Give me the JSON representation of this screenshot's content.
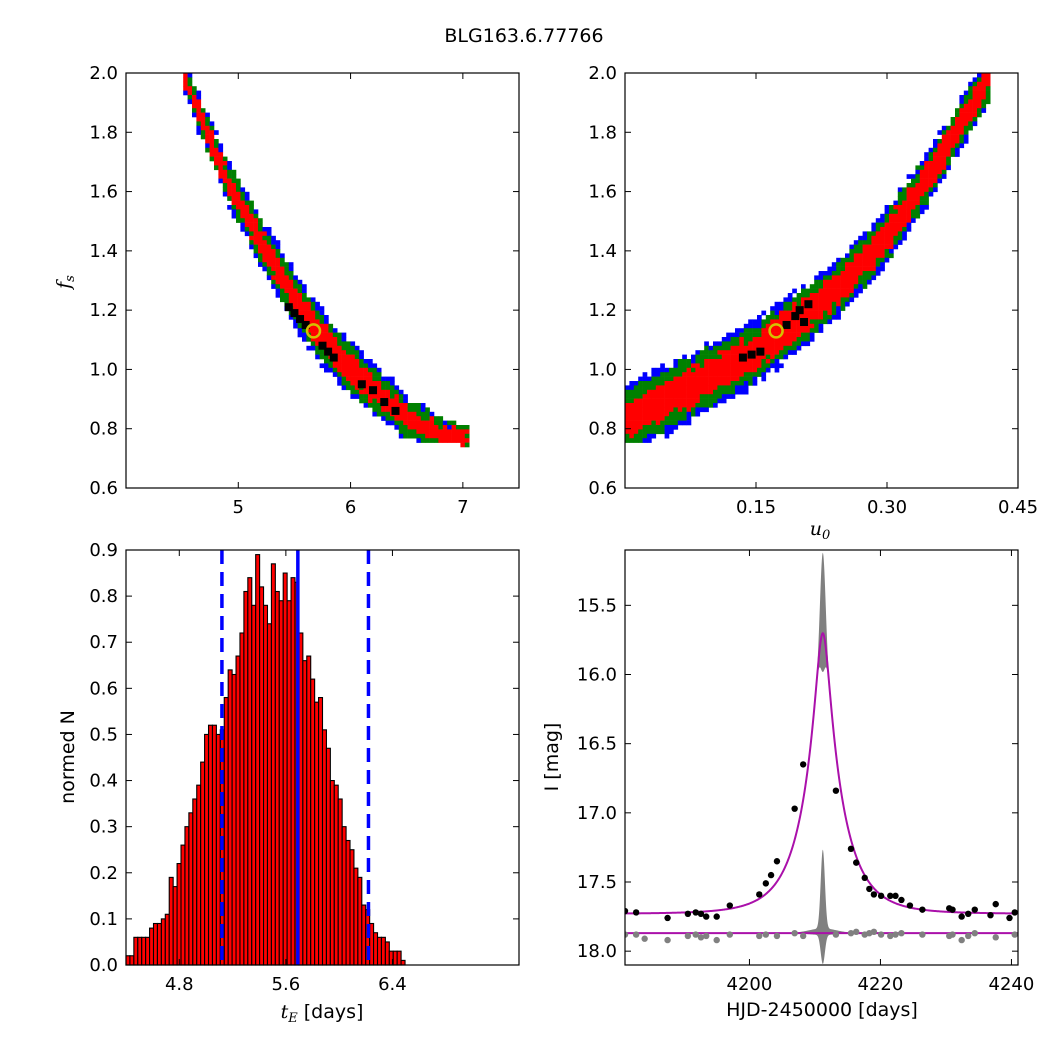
{
  "figure_title": "BLG163.6.77766",
  "chart_data": [
    {
      "type": "heatmap",
      "panel": "tE-fs",
      "xlim": [
        4.0,
        7.5
      ],
      "ylim": [
        0.6,
        2.0
      ],
      "xticks": [
        5,
        6,
        7
      ],
      "xtick_labels": [
        "5",
        "6",
        "7"
      ],
      "yticks": [
        0.6,
        0.8,
        1.0,
        1.2,
        1.4,
        1.6,
        1.8,
        2.0
      ],
      "ytick_labels": [
        "0.6",
        "0.8",
        "1.0",
        "1.2",
        "1.4",
        "1.6",
        "1.8",
        "2.0"
      ],
      "xlabel": "",
      "ylabel": "f_s",
      "ylabel_main": "f",
      "ylabel_sub": "s",
      "levels": [
        {
          "name": "outer",
          "color": "#0000ff"
        },
        {
          "name": "middle",
          "color": "#008000"
        },
        {
          "name": "inner",
          "color": "#ff0000"
        },
        {
          "name": "best",
          "color": "#000000"
        }
      ],
      "ridge": [
        [
          4.5,
          2.0
        ],
        [
          4.7,
          1.82
        ],
        [
          4.9,
          1.64
        ],
        [
          5.1,
          1.5
        ],
        [
          5.3,
          1.37
        ],
        [
          5.5,
          1.24
        ],
        [
          5.7,
          1.13
        ],
        [
          5.9,
          1.04
        ],
        [
          6.1,
          0.97
        ],
        [
          6.3,
          0.9
        ],
        [
          6.5,
          0.84
        ],
        [
          6.7,
          0.8
        ],
        [
          6.9,
          0.77
        ],
        [
          7.05,
          0.76
        ]
      ],
      "best_fit": {
        "x": 5.67,
        "y": 1.13,
        "marker_color": "#d4c000"
      },
      "best_cells": [
        [
          5.45,
          1.21
        ],
        [
          5.5,
          1.19
        ],
        [
          5.55,
          1.17
        ],
        [
          5.6,
          1.15
        ],
        [
          5.75,
          1.08
        ],
        [
          5.8,
          1.06
        ],
        [
          5.85,
          1.04
        ],
        [
          6.1,
          0.95
        ],
        [
          6.2,
          0.93
        ],
        [
          6.3,
          0.89
        ],
        [
          6.4,
          0.86
        ]
      ]
    },
    {
      "type": "heatmap",
      "panel": "u0-fs",
      "xlim": [
        0.0,
        0.45
      ],
      "ylim": [
        0.6,
        2.0
      ],
      "xticks": [
        0.15,
        0.3,
        0.45
      ],
      "xtick_labels": [
        "0.15",
        "0.30",
        "0.45"
      ],
      "yticks": [
        0.6,
        0.8,
        1.0,
        1.2,
        1.4,
        1.6,
        1.8,
        2.0
      ],
      "ytick_labels": [
        "0.6",
        "0.8",
        "1.0",
        "1.2",
        "1.4",
        "1.6",
        "1.8",
        "2.0"
      ],
      "xlabel": "u_0",
      "xlabel_main": "u",
      "xlabel_sub": "0",
      "ylabel": "",
      "ridge": [
        [
          0.0,
          0.83
        ],
        [
          0.05,
          0.9
        ],
        [
          0.1,
          0.98
        ],
        [
          0.15,
          1.06
        ],
        [
          0.2,
          1.17
        ],
        [
          0.25,
          1.29
        ],
        [
          0.3,
          1.45
        ],
        [
          0.35,
          1.66
        ],
        [
          0.4,
          1.9
        ],
        [
          0.42,
          2.0
        ]
      ],
      "best_fit": {
        "x": 0.173,
        "y": 1.13,
        "marker_color": "#d4c000"
      },
      "best_cells": [
        [
          0.135,
          1.04
        ],
        [
          0.145,
          1.05
        ],
        [
          0.155,
          1.06
        ],
        [
          0.185,
          1.15
        ],
        [
          0.195,
          1.18
        ],
        [
          0.2,
          1.2
        ],
        [
          0.21,
          1.22
        ],
        [
          0.205,
          1.16
        ]
      ]
    },
    {
      "type": "bar",
      "panel": "tE-histogram",
      "xlim": [
        4.4,
        7.35
      ],
      "ylim": [
        0.0,
        0.9
      ],
      "xticks": [
        4.8,
        5.6,
        6.4
      ],
      "xtick_labels": [
        "4.8",
        "5.6",
        "6.4"
      ],
      "yticks": [
        0.0,
        0.1,
        0.2,
        0.3,
        0.4,
        0.5,
        0.6,
        0.7,
        0.8,
        0.9
      ],
      "ytick_labels": [
        "0.0",
        "0.1",
        "0.2",
        "0.3",
        "0.4",
        "0.5",
        "0.6",
        "0.7",
        "0.8",
        "0.9"
      ],
      "xlabel_math": "t",
      "xlabel_sub": "E",
      "xlabel_rest": " [days]",
      "ylabel": "normed N",
      "bin_start": 4.4,
      "bin_width": 0.0295,
      "bar_color": "#ff0000",
      "values": [
        0.02,
        0.02,
        0.06,
        0.06,
        0.06,
        0.06,
        0.08,
        0.09,
        0.09,
        0.1,
        0.11,
        0.19,
        0.17,
        0.22,
        0.26,
        0.3,
        0.33,
        0.36,
        0.39,
        0.44,
        0.5,
        0.52,
        0.52,
        0.5,
        0.51,
        0.58,
        0.64,
        0.63,
        0.67,
        0.72,
        0.81,
        0.84,
        0.78,
        0.89,
        0.82,
        0.78,
        0.74,
        0.87,
        0.81,
        0.79,
        0.85,
        0.79,
        0.84,
        0.83,
        0.72,
        0.66,
        0.67,
        0.62,
        0.57,
        0.58,
        0.51,
        0.47,
        0.4,
        0.39,
        0.36,
        0.3,
        0.27,
        0.25,
        0.21,
        0.19,
        0.13,
        0.12,
        0.09,
        0.07,
        0.06,
        0.06,
        0.05,
        0.03,
        0.03,
        0.03,
        0.01
      ],
      "median": 5.69,
      "median_color": "#0000ff",
      "bounds": [
        5.12,
        6.22
      ]
    },
    {
      "type": "scatter",
      "panel": "lightcurve",
      "xlim": [
        4181,
        4241
      ],
      "ylim": [
        18.1,
        15.1
      ],
      "y_inverted": true,
      "xticks": [
        4200,
        4220,
        4240
      ],
      "xtick_labels": [
        "4200",
        "4220",
        "4240"
      ],
      "yticks": [
        15.5,
        16.0,
        16.5,
        17.0,
        17.5,
        18.0
      ],
      "ytick_labels": [
        "15.5",
        "16.0",
        "16.5",
        "17.0",
        "17.5",
        "18.0"
      ],
      "xlabel": "HJD-2450000 [days]",
      "ylabel": "I [mag]",
      "model": {
        "t0": 4211.2,
        "tE": 5.69,
        "u0": 0.173,
        "fs": 1.13,
        "baseline": 17.73,
        "color": "#aa10aa"
      },
      "residual_baseline": 17.87,
      "spread_color": "#808080",
      "spread_peak_top": 15.12,
      "spread_low_top": 17.3,
      "spread_low_bottom": 18.08,
      "data_points": [
        [
          4181,
          17.71
        ],
        [
          4182.7,
          17.72
        ],
        [
          4187.5,
          17.76
        ],
        [
          4190.6,
          17.73
        ],
        [
          4191.8,
          17.72
        ],
        [
          4192.6,
          17.73
        ],
        [
          4193.4,
          17.75
        ],
        [
          4195,
          17.75
        ],
        [
          4197,
          17.67
        ],
        [
          4201.5,
          17.59
        ],
        [
          4202.5,
          17.51
        ],
        [
          4203.3,
          17.45
        ],
        [
          4204.2,
          17.35
        ],
        [
          4206.9,
          16.97
        ],
        [
          4208.2,
          16.65
        ],
        [
          4213.2,
          16.84
        ],
        [
          4215.5,
          17.26
        ],
        [
          4216.3,
          17.36
        ],
        [
          4217.6,
          17.47
        ],
        [
          4218.3,
          17.55
        ],
        [
          4219,
          17.59
        ],
        [
          4220.1,
          17.6
        ],
        [
          4221.5,
          17.6
        ],
        [
          4222.3,
          17.6
        ],
        [
          4223.2,
          17.63
        ],
        [
          4224.5,
          17.67
        ],
        [
          4226.4,
          17.7
        ],
        [
          4230.5,
          17.69
        ],
        [
          4231,
          17.7
        ],
        [
          4232.4,
          17.75
        ],
        [
          4233.4,
          17.73
        ],
        [
          4234.4,
          17.7
        ],
        [
          4236.8,
          17.74
        ],
        [
          4237.6,
          17.66
        ],
        [
          4239.7,
          17.76
        ],
        [
          4240.5,
          17.72
        ]
      ],
      "residual_points": [
        [
          4181,
          17.88
        ],
        [
          4182.7,
          17.88
        ],
        [
          4184,
          17.91
        ],
        [
          4187.5,
          17.92
        ],
        [
          4190.6,
          17.89
        ],
        [
          4191.8,
          17.88
        ],
        [
          4192.6,
          17.9
        ],
        [
          4193.4,
          17.89
        ],
        [
          4195,
          17.92
        ],
        [
          4197,
          17.88
        ],
        [
          4201.5,
          17.89
        ],
        [
          4202.5,
          17.88
        ],
        [
          4204.2,
          17.89
        ],
        [
          4206.9,
          17.87
        ],
        [
          4208.2,
          17.89
        ],
        [
          4213.2,
          17.88
        ],
        [
          4215.5,
          17.87
        ],
        [
          4216.3,
          17.86
        ],
        [
          4217.6,
          17.88
        ],
        [
          4218.3,
          17.87
        ],
        [
          4219,
          17.86
        ],
        [
          4220.1,
          17.88
        ],
        [
          4221.5,
          17.89
        ],
        [
          4222.3,
          17.88
        ],
        [
          4223.2,
          17.87
        ],
        [
          4226.4,
          17.88
        ],
        [
          4230.5,
          17.89
        ],
        [
          4231,
          17.88
        ],
        [
          4232.4,
          17.92
        ],
        [
          4233.4,
          17.89
        ],
        [
          4234.4,
          17.87
        ],
        [
          4237.6,
          17.9
        ],
        [
          4240.5,
          17.88
        ]
      ],
      "data_color": "#000000",
      "residual_color": "#808080"
    }
  ]
}
